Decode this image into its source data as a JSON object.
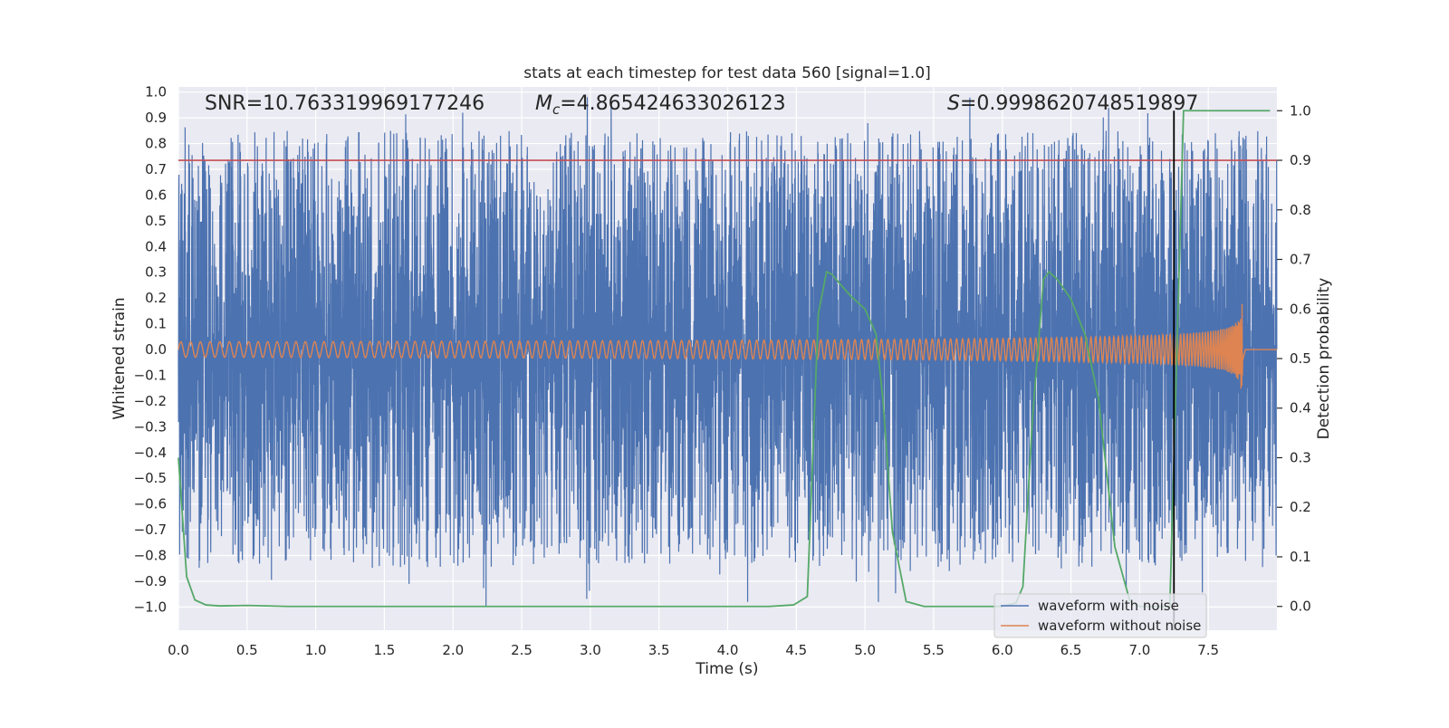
{
  "chart_data": {
    "type": "line",
    "title": "stats at each timestep for test data 560 [signal=1.0]",
    "xlabel": "Time (s)",
    "ylabel_left": "Whitened strain",
    "ylabel_right": "Detection probability",
    "xlim": [
      0.0,
      8.0
    ],
    "ylim_left": [
      -1.09,
      1.02
    ],
    "ylim_right": [
      -0.048,
      1.048
    ],
    "x_ticks": [
      "0.0",
      "0.5",
      "1.0",
      "1.5",
      "2.0",
      "2.5",
      "3.0",
      "3.5",
      "4.0",
      "4.5",
      "5.0",
      "5.5",
      "6.0",
      "6.5",
      "7.0",
      "7.5"
    ],
    "y_left_ticks": [
      "1.0",
      "0.9",
      "0.8",
      "0.7",
      "0.6",
      "0.5",
      "0.4",
      "0.3",
      "0.2",
      "0.1",
      "0.0",
      "−0.1",
      "−0.2",
      "−0.3",
      "−0.4",
      "−0.5",
      "−0.6",
      "−0.7",
      "−0.8",
      "−0.9",
      "−1.0"
    ],
    "y_left_values": [
      1.0,
      0.9,
      0.8,
      0.7,
      0.6,
      0.5,
      0.4,
      0.3,
      0.2,
      0.1,
      0.0,
      -0.1,
      -0.2,
      -0.3,
      -0.4,
      -0.5,
      -0.6,
      -0.7,
      -0.8,
      -0.9,
      -1.0
    ],
    "y_right_ticks": [
      "1.0",
      "0.9",
      "0.8",
      "0.7",
      "0.6",
      "0.5",
      "0.4",
      "0.3",
      "0.2",
      "0.1",
      "0.0"
    ],
    "y_right_values": [
      1.0,
      0.9,
      0.8,
      0.7,
      0.6,
      0.5,
      0.4,
      0.3,
      0.2,
      0.1,
      0.0
    ],
    "annotations": {
      "snr": "SNR=10.763319969177246",
      "mc_symbol": "M",
      "mc_sub": "c",
      "mc_value": "=4.865424633026123",
      "s_symbol": "S",
      "s_value": "=0.9998620748519897"
    },
    "threshold_line": {
      "axis": "right",
      "value": 0.9,
      "color": "#c44e52"
    },
    "marker_line": {
      "x": 7.25,
      "color": "#000000"
    },
    "noise_series": {
      "name": "waveform with noise",
      "color": "#4c72b0",
      "n_samples": 8192,
      "sample_rate": 1024,
      "envelope": 0.5,
      "notable_peaks": [
        {
          "t": 0.44,
          "v": 0.82
        },
        {
          "t": 1.59,
          "v": 0.84
        },
        {
          "t": 2.07,
          "v": 0.92
        },
        {
          "t": 7.5,
          "v": 0.81
        },
        {
          "t": 2.24,
          "v": -1.0
        },
        {
          "t": 0.44,
          "v": -0.83
        },
        {
          "t": 1.68,
          "v": -0.91
        },
        {
          "t": 5.33,
          "v": -0.86
        },
        {
          "t": 6.43,
          "v": -0.85
        }
      ]
    },
    "clean_series": {
      "name": "waveform without noise",
      "color": "#dd8452",
      "amp_start": 0.03,
      "amp_peak": 0.25,
      "t_merger": 7.75,
      "cycles": 120
    },
    "probability_series": {
      "name": "detection probability",
      "color": "#55a868",
      "axis": "right",
      "x": [
        0.0,
        0.06,
        0.12,
        0.2,
        0.3,
        0.5,
        0.8,
        1.5,
        2.5,
        3.5,
        4.3,
        4.48,
        4.58,
        4.66,
        4.72,
        4.76,
        4.82,
        4.9,
        5.0,
        5.08,
        5.13,
        5.2,
        5.3,
        5.43,
        5.5,
        5.8,
        6.0,
        6.1,
        6.15,
        6.22,
        6.3,
        6.34,
        6.4,
        6.5,
        6.6,
        6.7,
        6.82,
        6.93,
        7.0,
        7.15,
        7.22,
        7.27,
        7.32,
        7.5,
        7.75,
        7.95
      ],
      "y": [
        0.3,
        0.06,
        0.013,
        0.003,
        0.001,
        0.002,
        0.0,
        0.0,
        0.0,
        0.0,
        0.0,
        0.003,
        0.02,
        0.59,
        0.675,
        0.67,
        0.65,
        0.625,
        0.6,
        0.55,
        0.42,
        0.15,
        0.01,
        0.0,
        0.0,
        0.0,
        0.0,
        0.007,
        0.04,
        0.38,
        0.66,
        0.675,
        0.66,
        0.62,
        0.55,
        0.42,
        0.12,
        0.01,
        0.0,
        0.0,
        0.0,
        0.5,
        1.0,
        1.0,
        1.0,
        1.0
      ]
    },
    "legend": {
      "position": "lower-right",
      "entries": [
        {
          "label": "waveform with noise",
          "color": "#4c72b0"
        },
        {
          "label": "waveform without noise",
          "color": "#dd8452"
        }
      ]
    },
    "style": {
      "plot_background": "#eaeaf2",
      "grid_color": "#ffffff",
      "text_color": "#262626"
    }
  }
}
